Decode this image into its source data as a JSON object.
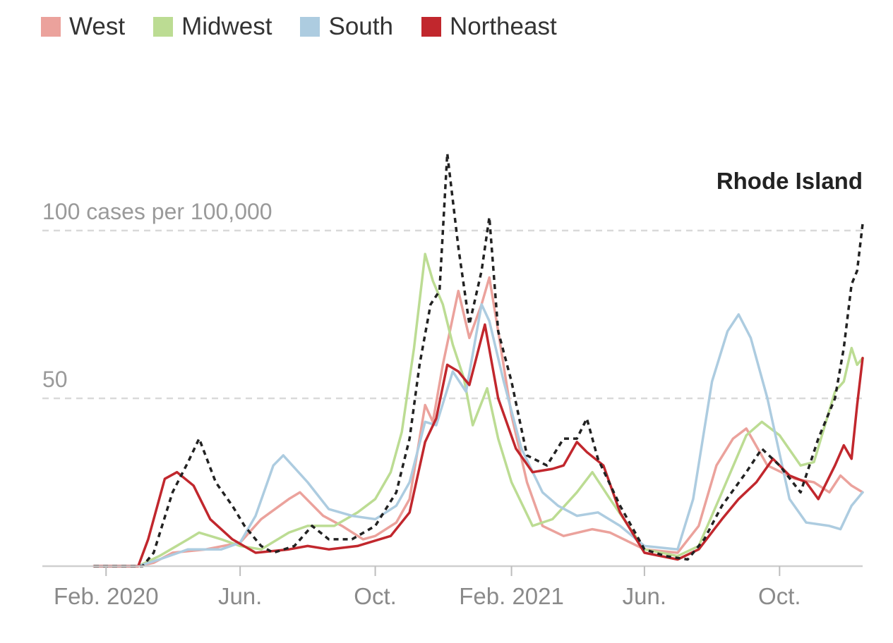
{
  "chart_data": {
    "type": "line",
    "title": "",
    "xlabel": "",
    "ylabel": "100 cases per 100,000",
    "ylim": [
      0,
      105
    ],
    "grid": "horizontal dashed at 50 and 100",
    "legend_position": "top",
    "y_ticks": [
      {
        "value": 100,
        "label": "100 cases per 100,000"
      },
      {
        "value": 50,
        "label": "50"
      }
    ],
    "x_ticks": [
      {
        "date": "2020-02-01",
        "label": "Feb. 2020"
      },
      {
        "date": "2020-06-01",
        "label": "Jun."
      },
      {
        "date": "2020-10-01",
        "label": "Oct."
      },
      {
        "date": "2021-02-01",
        "label": "Feb. 2021"
      },
      {
        "date": "2021-06-01",
        "label": "Jun."
      },
      {
        "date": "2021-10-01",
        "label": "Oct."
      }
    ],
    "x_range": [
      "2020-01-21",
      "2021-12-15"
    ],
    "annotation": {
      "text": "Rhode Island",
      "series": "Rhode Island"
    },
    "series": [
      {
        "name": "West",
        "color": "#eba29c",
        "style": "solid",
        "points": [
          [
            "2020-01-21",
            0
          ],
          [
            "2020-03-01",
            0
          ],
          [
            "2020-03-15",
            1
          ],
          [
            "2020-04-01",
            4
          ],
          [
            "2020-05-01",
            5
          ],
          [
            "2020-06-01",
            7
          ],
          [
            "2020-06-20",
            14
          ],
          [
            "2020-07-15",
            20
          ],
          [
            "2020-07-25",
            22
          ],
          [
            "2020-08-15",
            15
          ],
          [
            "2020-09-01",
            12
          ],
          [
            "2020-09-20",
            8
          ],
          [
            "2020-10-01",
            9
          ],
          [
            "2020-10-20",
            13
          ],
          [
            "2020-11-01",
            20
          ],
          [
            "2020-11-15",
            48
          ],
          [
            "2020-11-22",
            43
          ],
          [
            "2020-12-01",
            60
          ],
          [
            "2020-12-15",
            82
          ],
          [
            "2020-12-25",
            68
          ],
          [
            "2021-01-05",
            78
          ],
          [
            "2021-01-12",
            86
          ],
          [
            "2021-01-20",
            70
          ],
          [
            "2021-02-01",
            45
          ],
          [
            "2021-02-15",
            25
          ],
          [
            "2021-03-01",
            12
          ],
          [
            "2021-03-20",
            9
          ],
          [
            "2021-04-15",
            11
          ],
          [
            "2021-05-01",
            10
          ],
          [
            "2021-06-01",
            5
          ],
          [
            "2021-07-01",
            4
          ],
          [
            "2021-07-20",
            12
          ],
          [
            "2021-08-05",
            30
          ],
          [
            "2021-08-20",
            38
          ],
          [
            "2021-09-01",
            41
          ],
          [
            "2021-09-20",
            30
          ],
          [
            "2021-10-15",
            26
          ],
          [
            "2021-11-01",
            25
          ],
          [
            "2021-11-15",
            22
          ],
          [
            "2021-11-25",
            27
          ],
          [
            "2021-12-05",
            24
          ],
          [
            "2021-12-15",
            22
          ]
        ]
      },
      {
        "name": "Midwest",
        "color": "#bcdc93",
        "style": "solid",
        "points": [
          [
            "2020-01-21",
            0
          ],
          [
            "2020-03-01",
            0
          ],
          [
            "2020-03-20",
            3
          ],
          [
            "2020-04-15",
            8
          ],
          [
            "2020-04-25",
            10
          ],
          [
            "2020-05-15",
            8
          ],
          [
            "2020-06-01",
            6
          ],
          [
            "2020-06-20",
            5
          ],
          [
            "2020-07-15",
            10
          ],
          [
            "2020-08-01",
            12
          ],
          [
            "2020-08-25",
            12
          ],
          [
            "2020-09-15",
            16
          ],
          [
            "2020-10-01",
            20
          ],
          [
            "2020-10-15",
            28
          ],
          [
            "2020-10-25",
            40
          ],
          [
            "2020-11-05",
            65
          ],
          [
            "2020-11-15",
            93
          ],
          [
            "2020-11-22",
            85
          ],
          [
            "2020-12-01",
            78
          ],
          [
            "2020-12-10",
            66
          ],
          [
            "2020-12-20",
            56
          ],
          [
            "2020-12-28",
            42
          ],
          [
            "2021-01-10",
            53
          ],
          [
            "2021-01-20",
            38
          ],
          [
            "2021-02-01",
            25
          ],
          [
            "2021-02-20",
            12
          ],
          [
            "2021-03-10",
            14
          ],
          [
            "2021-04-01",
            22
          ],
          [
            "2021-04-15",
            28
          ],
          [
            "2021-05-01",
            20
          ],
          [
            "2021-06-01",
            5
          ],
          [
            "2021-07-01",
            3
          ],
          [
            "2021-07-20",
            6
          ],
          [
            "2021-08-10",
            22
          ],
          [
            "2021-09-01",
            39
          ],
          [
            "2021-09-15",
            43
          ],
          [
            "2021-10-01",
            39
          ],
          [
            "2021-10-20",
            30
          ],
          [
            "2021-11-01",
            31
          ],
          [
            "2021-11-20",
            52
          ],
          [
            "2021-11-28",
            55
          ],
          [
            "2021-12-05",
            65
          ],
          [
            "2021-12-10",
            60
          ],
          [
            "2021-12-15",
            62
          ]
        ]
      },
      {
        "name": "South",
        "color": "#adcce0",
        "style": "solid",
        "points": [
          [
            "2020-01-21",
            0
          ],
          [
            "2020-03-01",
            0
          ],
          [
            "2020-03-20",
            2
          ],
          [
            "2020-04-15",
            5
          ],
          [
            "2020-05-15",
            5
          ],
          [
            "2020-06-01",
            7
          ],
          [
            "2020-06-15",
            15
          ],
          [
            "2020-07-01",
            30
          ],
          [
            "2020-07-10",
            33
          ],
          [
            "2020-08-01",
            25
          ],
          [
            "2020-08-20",
            17
          ],
          [
            "2020-09-10",
            15
          ],
          [
            "2020-10-01",
            14
          ],
          [
            "2020-10-20",
            18
          ],
          [
            "2020-11-01",
            25
          ],
          [
            "2020-11-15",
            43
          ],
          [
            "2020-11-25",
            42
          ],
          [
            "2020-12-10",
            58
          ],
          [
            "2020-12-22",
            52
          ],
          [
            "2021-01-05",
            78
          ],
          [
            "2021-01-12",
            73
          ],
          [
            "2021-01-25",
            55
          ],
          [
            "2021-02-10",
            35
          ],
          [
            "2021-03-01",
            22
          ],
          [
            "2021-03-15",
            18
          ],
          [
            "2021-04-01",
            15
          ],
          [
            "2021-04-20",
            16
          ],
          [
            "2021-05-10",
            12
          ],
          [
            "2021-06-01",
            6
          ],
          [
            "2021-07-01",
            5
          ],
          [
            "2021-07-15",
            20
          ],
          [
            "2021-08-01",
            55
          ],
          [
            "2021-08-15",
            70
          ],
          [
            "2021-08-25",
            75
          ],
          [
            "2021-09-05",
            68
          ],
          [
            "2021-09-20",
            50
          ],
          [
            "2021-10-10",
            20
          ],
          [
            "2021-10-25",
            13
          ],
          [
            "2021-11-15",
            12
          ],
          [
            "2021-11-25",
            11
          ],
          [
            "2021-12-05",
            18
          ],
          [
            "2021-12-15",
            22
          ]
        ]
      },
      {
        "name": "Northeast",
        "color": "#c1272d",
        "style": "solid",
        "points": [
          [
            "2020-01-21",
            0
          ],
          [
            "2020-03-01",
            0
          ],
          [
            "2020-03-10",
            8
          ],
          [
            "2020-03-25",
            26
          ],
          [
            "2020-04-05",
            28
          ],
          [
            "2020-04-20",
            24
          ],
          [
            "2020-05-05",
            14
          ],
          [
            "2020-05-25",
            8
          ],
          [
            "2020-06-15",
            4
          ],
          [
            "2020-07-15",
            5
          ],
          [
            "2020-08-01",
            6
          ],
          [
            "2020-08-20",
            5
          ],
          [
            "2020-09-15",
            6
          ],
          [
            "2020-10-15",
            9
          ],
          [
            "2020-11-01",
            16
          ],
          [
            "2020-11-15",
            37
          ],
          [
            "2020-11-25",
            44
          ],
          [
            "2020-12-05",
            60
          ],
          [
            "2020-12-15",
            58
          ],
          [
            "2020-12-25",
            54
          ],
          [
            "2021-01-08",
            72
          ],
          [
            "2021-01-20",
            50
          ],
          [
            "2021-02-05",
            35
          ],
          [
            "2021-02-20",
            28
          ],
          [
            "2021-03-10",
            29
          ],
          [
            "2021-03-20",
            30
          ],
          [
            "2021-04-01",
            37
          ],
          [
            "2021-04-10",
            34
          ],
          [
            "2021-04-25",
            30
          ],
          [
            "2021-05-10",
            16
          ],
          [
            "2021-06-01",
            4
          ],
          [
            "2021-07-01",
            2
          ],
          [
            "2021-07-20",
            5
          ],
          [
            "2021-08-10",
            14
          ],
          [
            "2021-08-25",
            20
          ],
          [
            "2021-09-10",
            25
          ],
          [
            "2021-09-25",
            32
          ],
          [
            "2021-10-10",
            27
          ],
          [
            "2021-10-25",
            25
          ],
          [
            "2021-11-05",
            20
          ],
          [
            "2021-11-20",
            30
          ],
          [
            "2021-11-28",
            36
          ],
          [
            "2021-12-05",
            32
          ],
          [
            "2021-12-10",
            48
          ],
          [
            "2021-12-15",
            62
          ]
        ]
      },
      {
        "name": "Rhode Island",
        "color": "#222222",
        "style": "dashed",
        "points": [
          [
            "2020-01-21",
            0
          ],
          [
            "2020-03-05",
            0
          ],
          [
            "2020-03-15",
            4
          ],
          [
            "2020-04-01",
            22
          ],
          [
            "2020-04-15",
            31
          ],
          [
            "2020-04-25",
            38
          ],
          [
            "2020-05-10",
            25
          ],
          [
            "2020-05-25",
            18
          ],
          [
            "2020-06-05",
            12
          ],
          [
            "2020-06-20",
            6
          ],
          [
            "2020-07-01",
            4
          ],
          [
            "2020-07-20",
            6
          ],
          [
            "2020-08-05",
            12
          ],
          [
            "2020-08-20",
            8
          ],
          [
            "2020-09-10",
            8
          ],
          [
            "2020-10-01",
            12
          ],
          [
            "2020-10-20",
            22
          ],
          [
            "2020-11-01",
            38
          ],
          [
            "2020-11-10",
            60
          ],
          [
            "2020-11-20",
            78
          ],
          [
            "2020-11-28",
            82
          ],
          [
            "2020-12-05",
            123
          ],
          [
            "2020-12-15",
            95
          ],
          [
            "2020-12-25",
            72
          ],
          [
            "2021-01-05",
            88
          ],
          [
            "2021-01-12",
            104
          ],
          [
            "2021-01-20",
            70
          ],
          [
            "2021-02-01",
            55
          ],
          [
            "2021-02-15",
            33
          ],
          [
            "2021-03-05",
            30
          ],
          [
            "2021-03-20",
            38
          ],
          [
            "2021-04-01",
            38
          ],
          [
            "2021-04-10",
            44
          ],
          [
            "2021-04-20",
            32
          ],
          [
            "2021-05-10",
            18
          ],
          [
            "2021-06-01",
            5
          ],
          [
            "2021-06-20",
            3
          ],
          [
            "2021-07-10",
            2
          ],
          [
            "2021-07-25",
            8
          ],
          [
            "2021-08-10",
            18
          ],
          [
            "2021-09-01",
            28
          ],
          [
            "2021-09-15",
            35
          ],
          [
            "2021-10-01",
            30
          ],
          [
            "2021-10-20",
            22
          ],
          [
            "2021-11-05",
            38
          ],
          [
            "2021-11-20",
            50
          ],
          [
            "2021-11-28",
            65
          ],
          [
            "2021-12-05",
            84
          ],
          [
            "2021-12-10",
            88
          ],
          [
            "2021-12-15",
            102
          ]
        ]
      }
    ]
  }
}
